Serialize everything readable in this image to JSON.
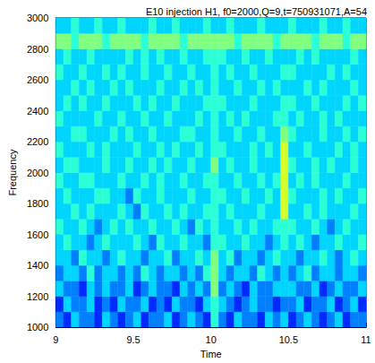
{
  "chart_data": {
    "type": "heatmap",
    "title": "E10 injection H1, f0=2000,Q=9,t=750931071,A=54",
    "xlabel": "Time",
    "ylabel": "Frequency",
    "xlim": [
      9,
      11
    ],
    "ylim": [
      1000,
      3000
    ],
    "xticks": [
      9,
      9.5,
      10,
      10.5,
      11
    ],
    "yticks": [
      1000,
      1200,
      1400,
      1600,
      1800,
      2000,
      2200,
      2400,
      2600,
      2800,
      3000
    ],
    "grid": false,
    "zlim": [
      0,
      12
    ],
    "x": [
      9.025,
      9.075,
      9.125,
      9.175,
      9.225,
      9.275,
      9.325,
      9.375,
      9.425,
      9.475,
      9.525,
      9.575,
      9.625,
      9.675,
      9.725,
      9.775,
      9.825,
      9.875,
      9.925,
      9.975,
      10.025,
      10.075,
      10.125,
      10.175,
      10.225,
      10.275,
      10.325,
      10.375,
      10.425,
      10.475,
      10.525,
      10.575,
      10.625,
      10.675,
      10.725,
      10.775,
      10.825,
      10.875,
      10.925,
      10.975
    ],
    "y": [
      1050,
      1150,
      1250,
      1350,
      1450,
      1550,
      1650,
      1750,
      1850,
      1950,
      2050,
      2150,
      2250,
      2350,
      2450,
      2550,
      2650,
      2750,
      2850,
      2950
    ],
    "z": [
      [
        3,
        2,
        4,
        3,
        3,
        2,
        4,
        3,
        2,
        3,
        4,
        2,
        3,
        3,
        4,
        2,
        3,
        4,
        3,
        2,
        5,
        3,
        2,
        4,
        3,
        3,
        2,
        4,
        3,
        4,
        2,
        3,
        4,
        3,
        2,
        3,
        4,
        2,
        3,
        3
      ],
      [
        2,
        4,
        3,
        3,
        4,
        2,
        3,
        2,
        4,
        3,
        3,
        4,
        2,
        3,
        2,
        4,
        3,
        3,
        2,
        4,
        5,
        4,
        3,
        2,
        3,
        4,
        3,
        3,
        2,
        3,
        3,
        4,
        2,
        3,
        3,
        4,
        2,
        3,
        4,
        2
      ],
      [
        4,
        3,
        3,
        2,
        4,
        3,
        4,
        3,
        3,
        4,
        2,
        3,
        4,
        3,
        3,
        2,
        4,
        3,
        4,
        3,
        6,
        3,
        4,
        3,
        2,
        4,
        3,
        3,
        4,
        4,
        4,
        3,
        3,
        4,
        2,
        3,
        4,
        3,
        3,
        4
      ],
      [
        3,
        4,
        4,
        3,
        5,
        3,
        4,
        4,
        3,
        4,
        3,
        5,
        4,
        3,
        4,
        4,
        3,
        4,
        3,
        5,
        6,
        4,
        3,
        4,
        4,
        3,
        5,
        4,
        3,
        4,
        3,
        4,
        5,
        3,
        4,
        4,
        3,
        4,
        4,
        3
      ],
      [
        4,
        4,
        3,
        5,
        4,
        4,
        3,
        4,
        5,
        4,
        4,
        3,
        4,
        4,
        5,
        3,
        4,
        4,
        5,
        4,
        6,
        4,
        5,
        3,
        4,
        4,
        3,
        4,
        5,
        4,
        4,
        3,
        4,
        4,
        5,
        4,
        3,
        4,
        5,
        4
      ],
      [
        4,
        5,
        4,
        4,
        3,
        4,
        5,
        4,
        4,
        4,
        5,
        4,
        3,
        5,
        4,
        4,
        5,
        4,
        4,
        3,
        5,
        5,
        4,
        4,
        5,
        4,
        4,
        3,
        4,
        5,
        4,
        5,
        4,
        3,
        4,
        4,
        5,
        4,
        4,
        5
      ],
      [
        5,
        4,
        4,
        5,
        4,
        3,
        4,
        5,
        4,
        5,
        4,
        4,
        5,
        4,
        4,
        5,
        4,
        3,
        5,
        4,
        5,
        4,
        4,
        5,
        4,
        5,
        4,
        4,
        5,
        5,
        5,
        4,
        4,
        5,
        4,
        3,
        4,
        5,
        4,
        4
      ],
      [
        4,
        4,
        5,
        4,
        5,
        4,
        4,
        4,
        5,
        4,
        3,
        5,
        4,
        4,
        5,
        4,
        5,
        4,
        4,
        5,
        5,
        4,
        5,
        4,
        4,
        4,
        5,
        4,
        4,
        7,
        4,
        4,
        5,
        4,
        5,
        4,
        4,
        4,
        5,
        4
      ],
      [
        4,
        5,
        4,
        4,
        4,
        5,
        5,
        4,
        4,
        3,
        5,
        4,
        4,
        5,
        4,
        4,
        4,
        5,
        4,
        4,
        5,
        5,
        4,
        4,
        5,
        4,
        4,
        5,
        4,
        7,
        5,
        4,
        4,
        4,
        5,
        4,
        5,
        4,
        4,
        5
      ],
      [
        5,
        4,
        4,
        5,
        5,
        4,
        4,
        4,
        5,
        4,
        4,
        5,
        4,
        5,
        4,
        4,
        5,
        4,
        4,
        5,
        5,
        4,
        4,
        5,
        4,
        4,
        5,
        4,
        5,
        7,
        4,
        5,
        4,
        5,
        4,
        4,
        4,
        5,
        4,
        4
      ],
      [
        4,
        5,
        5,
        4,
        4,
        4,
        5,
        4,
        4,
        5,
        4,
        4,
        5,
        4,
        5,
        4,
        4,
        5,
        4,
        4,
        6,
        4,
        5,
        4,
        4,
        5,
        4,
        4,
        4,
        7,
        5,
        4,
        4,
        5,
        4,
        5,
        4,
        4,
        5,
        4
      ],
      [
        5,
        4,
        4,
        4,
        5,
        4,
        5,
        4,
        4,
        4,
        5,
        4,
        4,
        5,
        4,
        5,
        4,
        4,
        5,
        4,
        5,
        5,
        4,
        4,
        4,
        5,
        4,
        5,
        4,
        7,
        4,
        4,
        5,
        4,
        4,
        4,
        5,
        4,
        5,
        4
      ],
      [
        4,
        4,
        5,
        5,
        4,
        4,
        4,
        5,
        4,
        5,
        4,
        4,
        5,
        4,
        4,
        4,
        5,
        5,
        4,
        4,
        5,
        4,
        4,
        5,
        4,
        4,
        5,
        4,
        4,
        6,
        5,
        4,
        4,
        4,
        5,
        4,
        4,
        5,
        4,
        5
      ],
      [
        5,
        4,
        4,
        4,
        4,
        5,
        4,
        4,
        5,
        4,
        4,
        5,
        4,
        4,
        5,
        4,
        4,
        4,
        5,
        4,
        5,
        4,
        5,
        4,
        5,
        4,
        4,
        4,
        5,
        5,
        4,
        5,
        4,
        4,
        5,
        4,
        5,
        4,
        4,
        4
      ],
      [
        4,
        5,
        4,
        5,
        4,
        4,
        5,
        4,
        4,
        4,
        5,
        4,
        5,
        4,
        4,
        5,
        4,
        4,
        4,
        5,
        5,
        5,
        4,
        4,
        4,
        5,
        4,
        4,
        4,
        5,
        5,
        4,
        4,
        5,
        4,
        4,
        4,
        5,
        4,
        5
      ],
      [
        4,
        4,
        5,
        4,
        5,
        4,
        4,
        5,
        4,
        5,
        4,
        4,
        4,
        5,
        4,
        4,
        5,
        4,
        5,
        4,
        5,
        4,
        4,
        5,
        4,
        4,
        5,
        4,
        5,
        4,
        4,
        4,
        5,
        4,
        5,
        4,
        4,
        4,
        5,
        4
      ],
      [
        5,
        4,
        4,
        5,
        4,
        4,
        5,
        4,
        5,
        4,
        4,
        5,
        4,
        4,
        5,
        4,
        4,
        5,
        4,
        4,
        5,
        4,
        5,
        4,
        4,
        5,
        4,
        4,
        4,
        5,
        5,
        4,
        4,
        4,
        4,
        5,
        4,
        5,
        4,
        4
      ],
      [
        4,
        5,
        4,
        4,
        5,
        4,
        4,
        4,
        4,
        5,
        4,
        5,
        4,
        5,
        4,
        4,
        5,
        4,
        4,
        5,
        5,
        5,
        4,
        4,
        5,
        4,
        4,
        5,
        4,
        4,
        4,
        5,
        4,
        5,
        4,
        4,
        4,
        4,
        5,
        4
      ],
      [
        6,
        6,
        5,
        6,
        6,
        6,
        5,
        6,
        6,
        6,
        6,
        5,
        6,
        6,
        6,
        6,
        5,
        6,
        6,
        6,
        6,
        6,
        6,
        5,
        6,
        6,
        6,
        6,
        5,
        6,
        6,
        6,
        6,
        5,
        6,
        6,
        6,
        5,
        6,
        6
      ],
      [
        4,
        4,
        5,
        4,
        4,
        5,
        4,
        4,
        5,
        4,
        4,
        4,
        5,
        4,
        4,
        5,
        4,
        4,
        4,
        5,
        4,
        4,
        5,
        4,
        4,
        4,
        5,
        4,
        4,
        4,
        5,
        4,
        4,
        4,
        5,
        4,
        4,
        5,
        4,
        4
      ]
    ]
  }
}
